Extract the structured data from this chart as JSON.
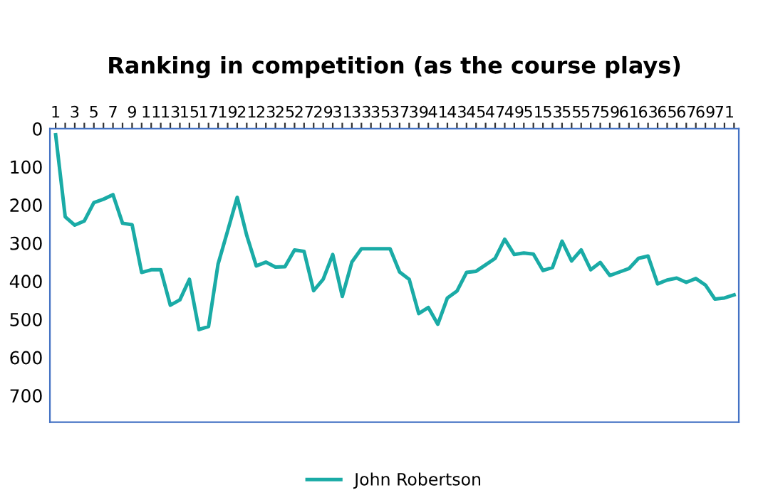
{
  "chart_data": {
    "type": "line",
    "title": "Ranking in competition (as the course plays)",
    "categories": [
      "1",
      null,
      "3",
      null,
      "5",
      null,
      "7",
      null,
      "9",
      null,
      "11",
      null,
      "13",
      null,
      "15",
      null,
      "17",
      null,
      "19",
      null,
      "21",
      null,
      "23",
      null,
      "25",
      null,
      "27",
      null,
      "29",
      null,
      "31",
      null,
      "33",
      null,
      "35",
      null,
      "37",
      null,
      "39",
      null,
      "41",
      null,
      "43",
      null,
      "45",
      null,
      "47",
      null,
      "49",
      null,
      "51",
      null,
      "53",
      null,
      "55",
      null,
      "57",
      null,
      "59",
      null,
      "61",
      null,
      "63",
      null,
      "65",
      null,
      "67",
      null,
      "69",
      null,
      "71",
      null
    ],
    "series": [
      {
        "name": "John Robertson",
        "color": "#1aaba6",
        "values": [
          16,
          231,
          253,
          242,
          194,
          185,
          173,
          248,
          252,
          377,
          370,
          370,
          463,
          449,
          395,
          527,
          519,
          355,
          268,
          180,
          280,
          360,
          350,
          363,
          362,
          318,
          322,
          425,
          395,
          330,
          440,
          350,
          315,
          315,
          315,
          315,
          376,
          395,
          485,
          469,
          513,
          444,
          426,
          377,
          374,
          357,
          340,
          290,
          330,
          326,
          329,
          372,
          364,
          295,
          347,
          318,
          370,
          351,
          385,
          376,
          367,
          340,
          334,
          407,
          397,
          392,
          403,
          393,
          410,
          447,
          444,
          436
        ]
      }
    ],
    "ylim": [
      770,
      0
    ],
    "yticks": [
      0,
      100,
      200,
      300,
      400,
      500,
      600,
      700
    ],
    "grid": false,
    "legend": "bottom",
    "marker": "none",
    "line_style": "solid"
  }
}
